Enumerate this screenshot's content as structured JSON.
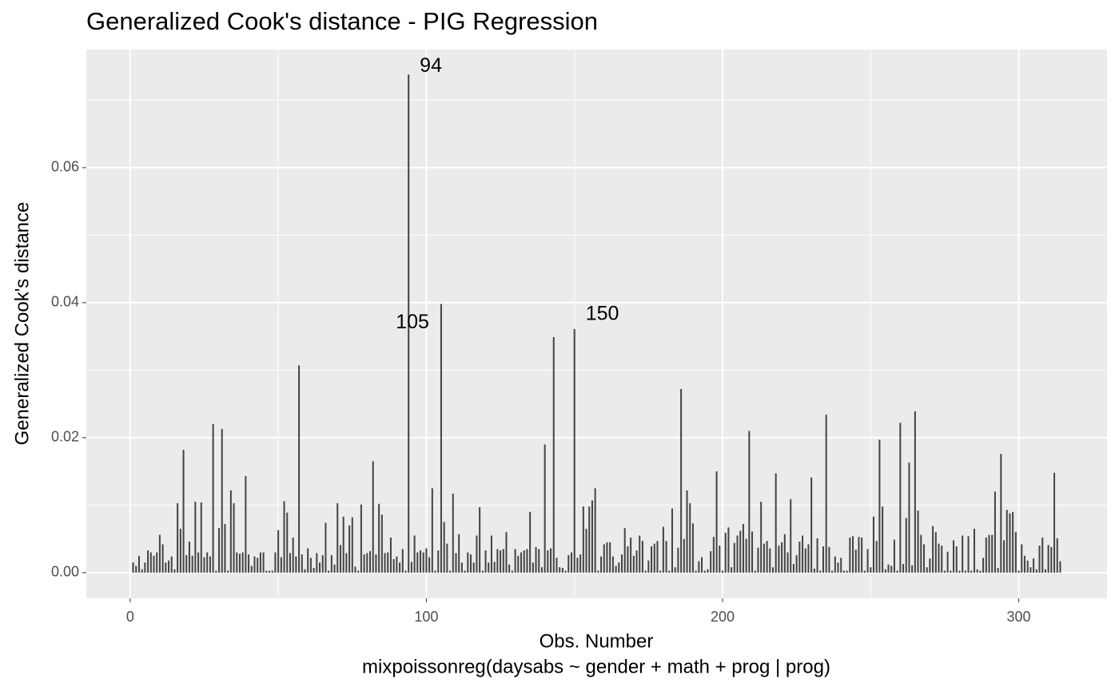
{
  "chart_data": {
    "type": "bar",
    "title": "Generalized Cook's distance - PIG Regression",
    "x_label": "Obs. Number",
    "caption": "mixpoissonreg(daysabs ~ gender + math + prog | prog)",
    "y_label": "Generalized Cook's distance",
    "color": "#454545",
    "grid": true,
    "xlim": [
      -14.8,
      329.8
    ],
    "ylim": [
      -0.0038,
      0.0775
    ],
    "xticks": [
      0,
      100,
      200,
      300
    ],
    "xminorticks": [
      50,
      150,
      250
    ],
    "yticks": [
      {
        "value": 0,
        "label": "0.00"
      },
      {
        "value": 0.02,
        "label": "0.02"
      },
      {
        "value": 0.04,
        "label": "0.04"
      },
      {
        "value": 0.06,
        "label": "0.06"
      }
    ],
    "yminorticks": [
      0.01,
      0.03,
      0.05,
      0.07
    ],
    "annotations": [
      {
        "text": "94",
        "x": 94
      },
      {
        "text": "105",
        "x": 105
      },
      {
        "text": "150",
        "x": 150
      }
    ],
    "x": [
      1,
      2,
      3,
      4,
      5,
      6,
      7,
      8,
      9,
      10,
      11,
      12,
      13,
      14,
      15,
      16,
      17,
      18,
      19,
      20,
      21,
      22,
      23,
      24,
      25,
      26,
      27,
      28,
      29,
      30,
      31,
      32,
      33,
      34,
      35,
      36,
      37,
      38,
      39,
      40,
      41,
      42,
      43,
      44,
      45,
      46,
      47,
      48,
      49,
      50,
      51,
      52,
      53,
      54,
      55,
      56,
      57,
      58,
      59,
      60,
      61,
      62,
      63,
      64,
      65,
      66,
      67,
      68,
      69,
      70,
      71,
      72,
      73,
      74,
      75,
      76,
      77,
      78,
      79,
      80,
      81,
      82,
      83,
      84,
      85,
      86,
      87,
      88,
      89,
      90,
      91,
      92,
      93,
      94,
      95,
      96,
      97,
      98,
      99,
      100,
      101,
      102,
      103,
      104,
      105,
      106,
      107,
      108,
      109,
      110,
      111,
      112,
      113,
      114,
      115,
      116,
      117,
      118,
      119,
      120,
      121,
      122,
      123,
      124,
      125,
      126,
      127,
      128,
      129,
      130,
      131,
      132,
      133,
      134,
      135,
      136,
      137,
      138,
      139,
      140,
      141,
      142,
      143,
      144,
      145,
      146,
      147,
      148,
      149,
      150,
      151,
      152,
      153,
      154,
      155,
      156,
      157,
      158,
      159,
      160,
      161,
      162,
      163,
      164,
      165,
      166,
      167,
      168,
      169,
      170,
      171,
      172,
      173,
      174,
      175,
      176,
      177,
      178,
      179,
      180,
      181,
      182,
      183,
      184,
      185,
      186,
      187,
      188,
      189,
      190,
      191,
      192,
      193,
      194,
      195,
      196,
      197,
      198,
      199,
      200,
      201,
      202,
      203,
      204,
      205,
      206,
      207,
      208,
      209,
      210,
      211,
      212,
      213,
      214,
      215,
      216,
      217,
      218,
      219,
      220,
      221,
      222,
      223,
      224,
      225,
      226,
      227,
      228,
      229,
      230,
      231,
      232,
      233,
      234,
      235,
      236,
      237,
      238,
      239,
      240,
      241,
      242,
      243,
      244,
      245,
      246,
      247,
      248,
      249,
      250,
      251,
      252,
      253,
      254,
      255,
      256,
      257,
      258,
      259,
      260,
      261,
      262,
      263,
      264,
      265,
      266,
      267,
      268,
      269,
      270,
      271,
      272,
      273,
      274,
      275,
      276,
      277,
      278,
      279,
      280,
      281,
      282,
      283,
      284,
      285,
      286,
      287,
      288,
      289,
      290,
      291,
      292,
      293,
      294,
      295,
      296,
      297,
      298,
      299,
      300,
      301,
      302,
      303,
      304,
      305,
      306,
      307,
      308,
      309,
      310,
      311,
      312,
      313,
      314
    ],
    "values": [
      0.0015,
      0.001,
      0.0025,
      0.0005,
      0.0015,
      0.0033,
      0.003,
      0.0025,
      0.003,
      0.0056,
      0.0042,
      0.0015,
      0.0018,
      0.0024,
      0.0005,
      0.0103,
      0.0065,
      0.0182,
      0.0026,
      0.0046,
      0.0025,
      0.0105,
      0.003,
      0.0104,
      0.0023,
      0.003,
      0.0024,
      0.022,
      0.0003,
      0.0066,
      0.0213,
      0.0072,
      0.0003,
      0.0122,
      0.0103,
      0.003,
      0.0028,
      0.003,
      0.0143,
      0.0027,
      0.001,
      0.0024,
      0.0022,
      0.003,
      0.003,
      0.0003,
      0.0003,
      0.0003,
      0.003,
      0.0063,
      0.0023,
      0.0106,
      0.0089,
      0.0029,
      0.0052,
      0.0024,
      0.0307,
      0.0027,
      0.0005,
      0.0036,
      0.0022,
      0.0007,
      0.0029,
      0.0015,
      0.0026,
      0.0074,
      0.0003,
      0.0026,
      0.0012,
      0.0103,
      0.0041,
      0.0083,
      0.0029,
      0.007,
      0.0082,
      0.0009,
      0.0003,
      0.0101,
      0.0027,
      0.0029,
      0.0032,
      0.0165,
      0.0027,
      0.0102,
      0.0086,
      0.0029,
      0.003,
      0.0052,
      0.002,
      0.0024,
      0.0015,
      0.0035,
      0.0003,
      0.0738,
      0.0016,
      0.0055,
      0.003,
      0.0033,
      0.003,
      0.0036,
      0.0023,
      0.0125,
      0.0003,
      0.0033,
      0.0398,
      0.0075,
      0.0043,
      0.0003,
      0.0117,
      0.0029,
      0.0057,
      0.0015,
      0.0003,
      0.003,
      0.0027,
      0.0015,
      0.0055,
      0.0097,
      0.0003,
      0.0033,
      0.0015,
      0.0055,
      0.0016,
      0.0035,
      0.0033,
      0.0035,
      0.006,
      0.0012,
      0.0003,
      0.0035,
      0.0025,
      0.003,
      0.0033,
      0.0035,
      0.009,
      0.0015,
      0.0038,
      0.0035,
      0.0008,
      0.019,
      0.0033,
      0.0036,
      0.0349,
      0.0022,
      0.0008,
      0.0007,
      0.0003,
      0.0026,
      0.003,
      0.0361,
      0.0022,
      0.0027,
      0.0098,
      0.0065,
      0.0098,
      0.0107,
      0.0125,
      0.0003,
      0.0024,
      0.0042,
      0.0045,
      0.0045,
      0.0024,
      0.001,
      0.0015,
      0.0027,
      0.0066,
      0.0039,
      0.0052,
      0.0025,
      0.0033,
      0.0055,
      0.0047,
      0.0003,
      0.0018,
      0.0039,
      0.0043,
      0.0047,
      0.0003,
      0.0068,
      0.0047,
      0.0003,
      0.0095,
      0.0008,
      0.0037,
      0.0272,
      0.005,
      0.0122,
      0.0103,
      0.0073,
      0.0003,
      0.0017,
      0.0023,
      0.0003,
      0.0005,
      0.0032,
      0.0053,
      0.015,
      0.004,
      0.0003,
      0.0059,
      0.0067,
      0.0008,
      0.0044,
      0.0055,
      0.0062,
      0.0072,
      0.005,
      0.021,
      0.0061,
      0.0003,
      0.0037,
      0.0105,
      0.0043,
      0.0047,
      0.0036,
      0.0008,
      0.0147,
      0.004,
      0.0045,
      0.0057,
      0.003,
      0.0109,
      0.0013,
      0.0026,
      0.0046,
      0.0055,
      0.0036,
      0.0042,
      0.0141,
      0.0006,
      0.0051,
      0.0003,
      0.0039,
      0.0234,
      0.0038,
      0.0003,
      0.0024,
      0.0015,
      0.0022,
      0.0003,
      0.0003,
      0.0052,
      0.0054,
      0.0034,
      0.0053,
      0.0052,
      0.0003,
      0.0035,
      0.0008,
      0.0083,
      0.0047,
      0.0197,
      0.0098,
      0.0005,
      0.0012,
      0.001,
      0.0049,
      0.0003,
      0.0222,
      0.0013,
      0.0081,
      0.0163,
      0.0011,
      0.0239,
      0.0092,
      0.0056,
      0.0042,
      0.0008,
      0.0021,
      0.0069,
      0.006,
      0.0043,
      0.004,
      0.0003,
      0.0031,
      0.0003,
      0.0048,
      0.0039,
      0.0003,
      0.0055,
      0.0003,
      0.0054,
      0.0003,
      0.0065,
      0.0005,
      0.0003,
      0.0022,
      0.0052,
      0.0056,
      0.0056,
      0.012,
      0.0007,
      0.0176,
      0.0048,
      0.0093,
      0.0088,
      0.009,
      0.006,
      0.0003,
      0.0042,
      0.0025,
      0.0018,
      0.0008,
      0.0021,
      0.0005,
      0.004,
      0.0052,
      0.0005,
      0.0041,
      0.0038,
      0.0148,
      0.0051,
      0.0017
    ]
  }
}
